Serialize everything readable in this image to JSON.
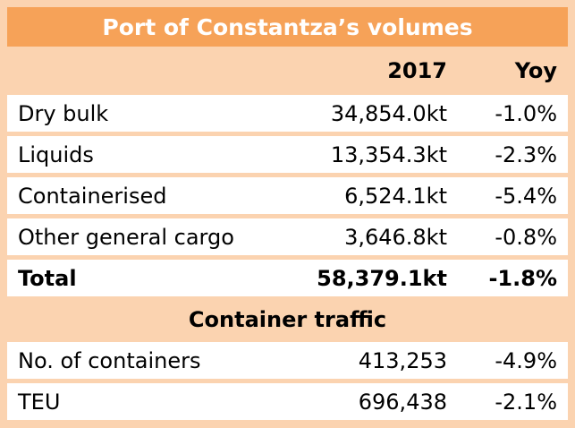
{
  "header": {
    "title": "Port of Constantza’s volumes"
  },
  "table": {
    "columns": [
      "2017",
      "Yoy"
    ],
    "rows": [
      [
        "Dry bulk",
        "34,854.0kt",
        "-1.0%"
      ],
      [
        "Liquids",
        "13,354.3kt",
        "-2.3%"
      ],
      [
        "Containerised",
        "6,524.1kt",
        "-5.4%"
      ],
      [
        "Other general cargo",
        "3,646.8kt",
        "-0.8%"
      ]
    ],
    "total": [
      "Total",
      "58,379.1kt",
      "-1.8%"
    ],
    "section": "Container traffic",
    "section_rows": [
      [
        "No. of containers",
        "413,253",
        "-4.9%"
      ],
      [
        "TEU",
        "696,438",
        "-2.1%"
      ]
    ]
  }
}
